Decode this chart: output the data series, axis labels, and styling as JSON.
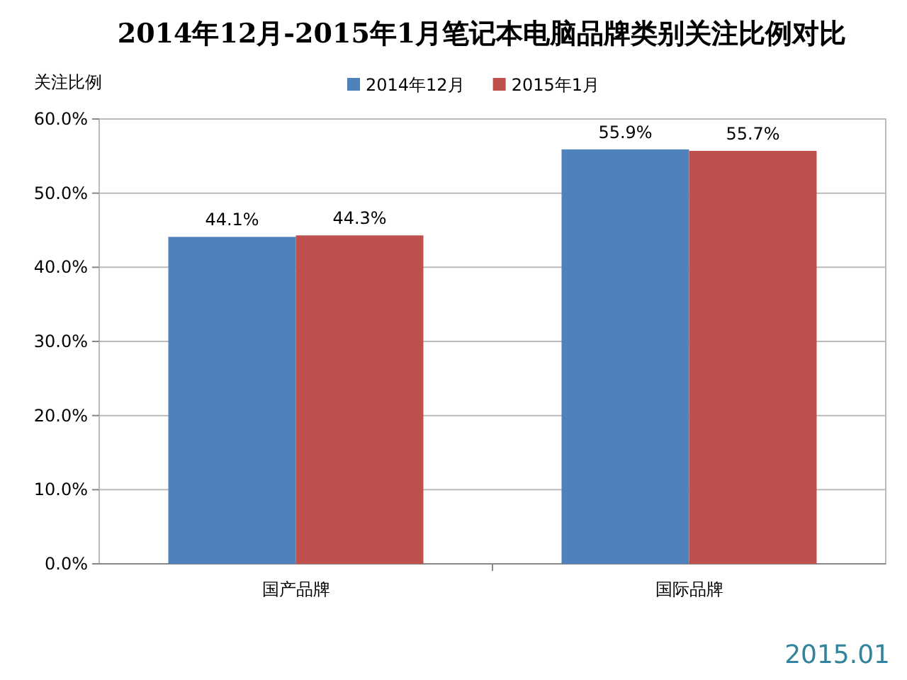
{
  "chart_data": {
    "type": "bar",
    "title": "2014年12月-2015年1月笔记本电脑品牌类别关注比例对比",
    "ylabel": "关注比例",
    "categories": [
      "国产品牌",
      "国际品牌"
    ],
    "series": [
      {
        "name": "2014年12月",
        "color": "#4f81bd",
        "values": [
          44.1,
          55.9
        ],
        "value_labels": [
          "44.1%",
          "55.9%"
        ]
      },
      {
        "name": "2015年1月",
        "color": "#c0504d",
        "values": [
          44.3,
          55.7
        ],
        "value_labels": [
          "44.3%",
          "55.7%"
        ]
      }
    ],
    "ylim": [
      0,
      60
    ],
    "yticks": [
      {
        "value": 0,
        "label": "0.0%"
      },
      {
        "value": 10,
        "label": "10.0%"
      },
      {
        "value": 20,
        "label": "20.0%"
      },
      {
        "value": 30,
        "label": "30.0%"
      },
      {
        "value": 40,
        "label": "40.0%"
      },
      {
        "value": 50,
        "label": "50.0%"
      },
      {
        "value": 60,
        "label": "60.0%"
      }
    ],
    "grid": "y",
    "legend": "top",
    "annotations": [
      "2015.01"
    ]
  }
}
